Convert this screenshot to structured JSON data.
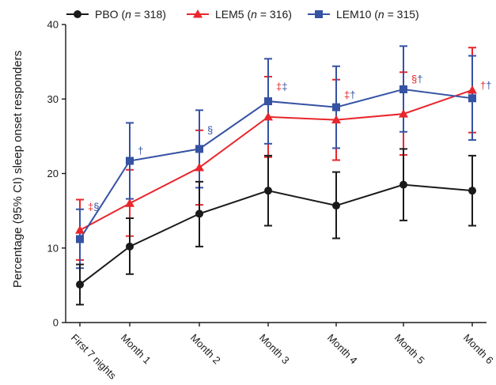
{
  "chart_data": {
    "type": "line",
    "ylabel": "Percentage (95% CI) sleep onset responders",
    "xlabel": "",
    "ylim": [
      0,
      40
    ],
    "yticks": [
      "0",
      "10",
      "20",
      "30",
      "40"
    ],
    "categories": [
      "First 7 nights",
      "Month 1",
      "Month 2",
      "Month 3",
      "Month 4",
      "Month 5",
      "Month 6"
    ],
    "legend_position": "top",
    "grid": false,
    "series": [
      {
        "name": "PBO",
        "n_label": "n = 318",
        "n_var": "n",
        "n_value": " = 318",
        "color": "#1a1a1a",
        "marker": "circle",
        "values": [
          5.1,
          10.2,
          14.6,
          17.7,
          15.7,
          18.5,
          17.7
        ],
        "ci_low": [
          2.4,
          6.5,
          10.2,
          13.0,
          11.3,
          13.7,
          13.0
        ],
        "ci_high": [
          7.8,
          14.0,
          18.9,
          22.4,
          20.2,
          23.3,
          22.4
        ]
      },
      {
        "name": "LEM5",
        "n_label": "n = 316",
        "n_var": "n",
        "n_value": " = 316",
        "color": "#e8262b",
        "marker": "triangle",
        "values": [
          12.4,
          16.0,
          20.8,
          27.6,
          27.2,
          28.0,
          31.2
        ],
        "ci_low": [
          8.4,
          11.6,
          15.8,
          22.2,
          21.8,
          22.5,
          25.5
        ],
        "ci_high": [
          16.5,
          20.5,
          25.8,
          33.0,
          32.6,
          33.6,
          36.9
        ]
      },
      {
        "name": "LEM10",
        "n_label": "n = 315",
        "n_var": "n",
        "n_value": " = 315",
        "color": "#3552a3",
        "marker": "square",
        "values": [
          11.2,
          21.7,
          23.3,
          29.7,
          28.9,
          31.3,
          30.1
        ],
        "ci_low": [
          7.3,
          16.6,
          18.1,
          24.0,
          23.4,
          25.6,
          24.5
        ],
        "ci_high": [
          15.2,
          26.8,
          28.5,
          35.4,
          34.4,
          37.1,
          35.8
        ]
      }
    ],
    "annotations": [
      {
        "category": 0,
        "parts": [
          {
            "text": "‡",
            "series": "LEM5"
          },
          {
            "text": "§",
            "series": "LEM10"
          }
        ],
        "y": 15.5
      },
      {
        "category": 1,
        "parts": [
          {
            "text": "†",
            "series": "LEM10"
          }
        ],
        "y": 23.0
      },
      {
        "category": 2,
        "parts": [
          {
            "text": "§",
            "series": "LEM10"
          }
        ],
        "y": 25.8
      },
      {
        "category": 3,
        "parts": [
          {
            "text": "‡",
            "series": "LEM5"
          },
          {
            "text": "‡",
            "series": "LEM10"
          }
        ],
        "y": 31.6
      },
      {
        "category": 4,
        "parts": [
          {
            "text": "‡",
            "series": "LEM5"
          },
          {
            "text": "†",
            "series": "LEM10"
          }
        ],
        "y": 30.5
      },
      {
        "category": 5,
        "parts": [
          {
            "text": "§",
            "series": "LEM5"
          },
          {
            "text": "†",
            "series": "LEM10"
          }
        ],
        "y": 32.6
      },
      {
        "category": 6,
        "parts": [
          {
            "text": "†",
            "series": "LEM5"
          },
          {
            "text": "†",
            "series": "LEM10"
          }
        ],
        "y": 31.8
      }
    ]
  }
}
